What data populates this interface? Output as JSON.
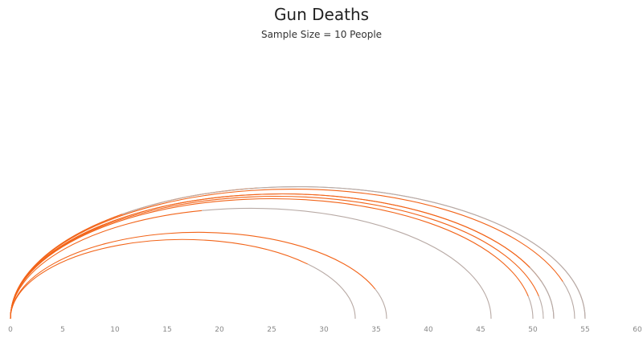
{
  "chart_data": {
    "type": "line",
    "title": "Gun Deaths",
    "subtitle": "Sample Size = 10 People",
    "xlim": [
      0,
      60
    ],
    "xticks": [
      "0",
      "5",
      "10",
      "15",
      "20",
      "25",
      "30",
      "35",
      "40",
      "45",
      "50",
      "55",
      "60"
    ],
    "grid": false,
    "colors": {
      "lived": "#f26419",
      "remaining": "#b8aaa5"
    },
    "series": [
      {
        "death_age": 32,
        "end_age": 36
      },
      {
        "death_age": 25,
        "end_age": 33
      },
      {
        "death_age": 20,
        "end_age": 46
      },
      {
        "death_age": 47,
        "end_age": 50
      },
      {
        "death_age": 48,
        "end_age": 51
      },
      {
        "death_age": 47,
        "end_age": 52
      },
      {
        "death_age": 45,
        "end_age": 52
      },
      {
        "death_age": 49,
        "end_age": 54
      },
      {
        "death_age": 25,
        "end_age": 55
      },
      {
        "death_age": 16,
        "end_age": 55
      }
    ]
  }
}
